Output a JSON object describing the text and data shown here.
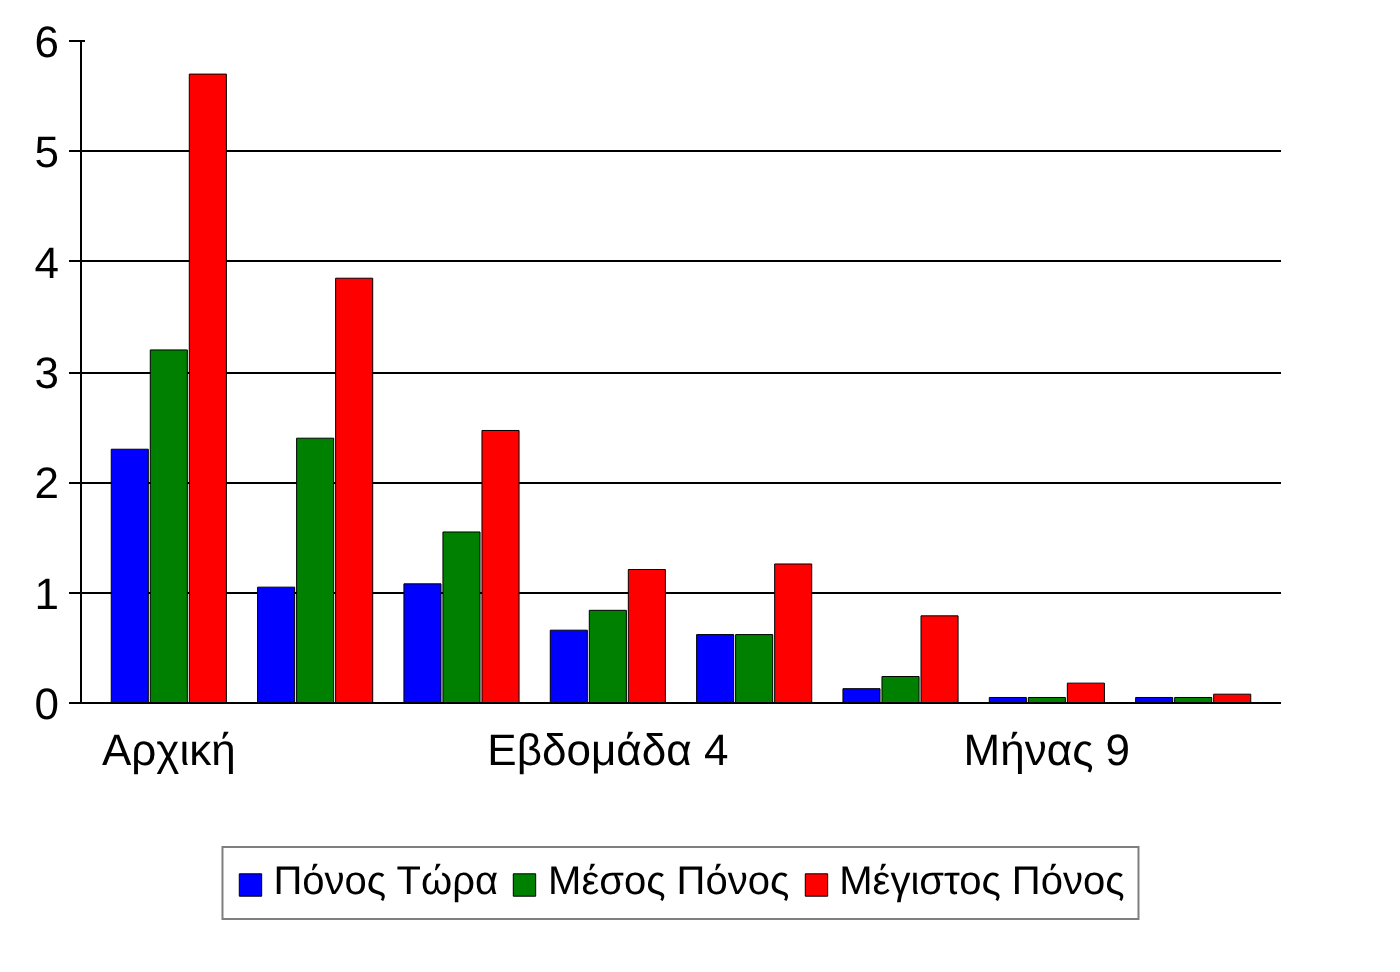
{
  "chart_data": {
    "type": "bar",
    "categories": [
      "Αρχική",
      null,
      null,
      "Εβδομάδα 4",
      null,
      null,
      "Μήνας 9",
      null
    ],
    "series": [
      {
        "name": "Πόνος Τώρα",
        "color": "#0000ff",
        "values": [
          2.3,
          1.05,
          1.08,
          0.66,
          0.62,
          0.13,
          0.05,
          0.05
        ]
      },
      {
        "name": "Μέσος Πόνος",
        "color": "#008000",
        "values": [
          3.2,
          2.4,
          1.55,
          0.84,
          0.62,
          0.24,
          0.05,
          0.05
        ]
      },
      {
        "name": "Μέγιστος Πόνος",
        "color": "#ff0000",
        "values": [
          5.7,
          3.85,
          2.47,
          1.21,
          1.26,
          0.79,
          0.18,
          0.08
        ]
      }
    ],
    "ylim": [
      0,
      6
    ],
    "yticks": [
      0,
      1,
      2,
      3,
      4,
      5,
      6
    ],
    "grid": "y",
    "legend": "bottom"
  }
}
